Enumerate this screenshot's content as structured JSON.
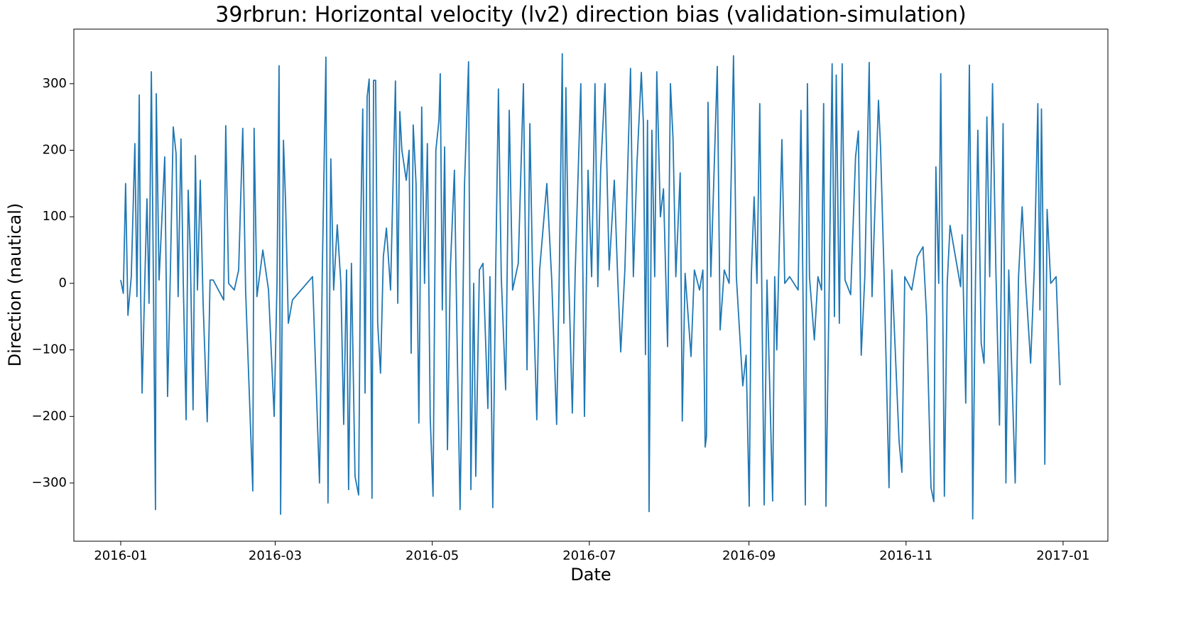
{
  "chart_data": {
    "type": "line",
    "title": "39rbrun: Horizontal velocity (lv2) direction bias (validation-simulation)",
    "x_label": "Date",
    "y_label": "Direction (nautical)",
    "color": "#1f77b4",
    "xlim": [
      -18.2,
      383.4
    ],
    "xticks": [
      {
        "value": 0,
        "label": "2016-01"
      },
      {
        "value": 60,
        "label": "2016-03"
      },
      {
        "value": 121,
        "label": "2016-05"
      },
      {
        "value": 182,
        "label": "2016-07"
      },
      {
        "value": 244,
        "label": "2016-09"
      },
      {
        "value": 305,
        "label": "2016-11"
      },
      {
        "value": 366,
        "label": "2017-01"
      }
    ],
    "ylim": [
      -387.5,
      382
    ],
    "yticks": [
      {
        "value": -300,
        "label": "−300"
      },
      {
        "value": -200,
        "label": "−200"
      },
      {
        "value": -100,
        "label": "−100"
      },
      0,
      100,
      200,
      300
    ],
    "x": [
      0.0,
      1.0,
      1.9,
      2.8,
      4.1,
      5.5,
      6.3,
      7.2,
      7.7,
      8.3,
      9.4,
      10.2,
      11.0,
      11.9,
      12.7,
      13.5,
      13.8,
      14.9,
      17.1,
      18.2,
      19.3,
      20.4,
      21.5,
      22.3,
      23.4,
      24.3,
      25.4,
      26.2,
      27.0,
      28.1,
      29.0,
      29.8,
      30.9,
      32.0,
      33.6,
      34.7,
      35.9,
      40.0,
      40.8,
      41.9,
      44.1,
      45.8,
      47.4,
      48.5,
      51.3,
      51.8,
      52.9,
      55.2,
      57.4,
      59.6,
      60.7,
      61.5,
      62.1,
      63.2,
      64.0,
      65.1,
      66.7,
      74.5,
      75.8,
      77.2,
      78.3,
      79.7,
      80.5,
      81.6,
      82.7,
      84.1,
      85.5,
      86.6,
      87.7,
      88.5,
      89.6,
      91.0,
      92.4,
      93.2,
      94.0,
      94.9,
      95.7,
      96.5,
      97.6,
      98.2,
      99.0,
      99.8,
      100.9,
      102.0,
      103.2,
      104.8,
      106.7,
      107.6,
      108.4,
      109.2,
      110.9,
      112.0,
      112.8,
      113.6,
      114.7,
      115.8,
      116.9,
      118.0,
      119.1,
      120.2,
      121.3,
      122.4,
      123.6,
      124.1,
      124.9,
      125.8,
      126.9,
      128.0,
      129.6,
      130.7,
      131.8,
      132.4,
      133.5,
      135.1,
      136.0,
      137.1,
      137.9,
      139.3,
      140.7,
      142.6,
      143.4,
      144.5,
      145.6,
      146.7,
      147.8,
      149.5,
      150.9,
      152.2,
      154.4,
      156.4,
      157.8,
      158.9,
      160.0,
      161.6,
      162.7,
      165.5,
      167.4,
      169.3,
      170.4,
      171.5,
      172.1,
      172.9,
      174.0,
      175.4,
      176.5,
      178.7,
      180.1,
      181.5,
      182.9,
      184.2,
      185.3,
      186.4,
      188.1,
      189.7,
      191.7,
      193.0,
      194.2,
      195.8,
      198.0,
      199.1,
      200.5,
      202.2,
      203.0,
      203.8,
      204.6,
      205.2,
      206.3,
      207.4,
      208.2,
      209.6,
      210.8,
      212.4,
      213.5,
      214.5,
      215.6,
      217.3,
      218.1,
      219.2,
      221.5,
      222.8,
      224.8,
      226.1,
      227.0,
      227.5,
      228.1,
      229.2,
      231.7,
      232.8,
      234.4,
      236.3,
      238.0,
      239.1,
      241.6,
      242.9,
      244.1,
      244.9,
      246.0,
      247.1,
      248.2,
      249.9,
      251.0,
      253.2,
      254.0,
      254.8,
      256.8,
      257.9,
      259.8,
      263.1,
      264.2,
      265.9,
      266.7,
      267.5,
      269.4,
      270.8,
      272.2,
      273.0,
      273.9,
      275.2,
      276.3,
      277.2,
      277.9,
      279.1,
      280.2,
      281.3,
      283.5,
      285.4,
      286.5,
      287.6,
      289.0,
      290.7,
      291.8,
      294.3,
      295.1,
      296.5,
      298.4,
      299.5,
      302.3,
      303.4,
      304.5,
      307.2,
      309.4,
      311.6,
      313.0,
      314.7,
      315.8,
      316.6,
      317.7,
      318.5,
      319.9,
      321.0,
      322.1,
      326.2,
      326.8,
      328.2,
      329.6,
      330.4,
      330.9,
      332.0,
      332.9,
      334.2,
      335.3,
      336.4,
      337.5,
      338.6,
      339.9,
      341.3,
      342.7,
      343.8,
      344.9,
      347.4,
      348.7,
      350.1,
      351.5,
      353.4,
      354.8,
      356.2,
      357.0,
      357.6,
      358.4,
      358.9,
      359.8,
      361.2,
      363.3,
      364.8
    ],
    "values": [
      5,
      -15,
      150,
      -48,
      10,
      210,
      -20,
      283,
      0,
      -165,
      10,
      127,
      -30,
      318,
      0,
      -340,
      285,
      5,
      190,
      -170,
      20,
      235,
      195,
      -20,
      217,
      0,
      -205,
      140,
      48,
      -190,
      192,
      -10,
      155,
      -30,
      -208,
      5,
      5,
      -25,
      237,
      0,
      -10,
      20,
      233,
      -10,
      -312,
      233,
      -20,
      50,
      -10,
      -200,
      0,
      327,
      -347,
      215,
      125,
      -60,
      -25,
      10,
      -140,
      -300,
      20,
      340,
      -330,
      187,
      -10,
      88,
      0,
      -212,
      20,
      -310,
      30,
      -290,
      -318,
      80,
      262,
      -165,
      280,
      307,
      -323,
      305,
      305,
      -60,
      -135,
      40,
      83,
      -10,
      304,
      -30,
      258,
      200,
      155,
      200,
      -105,
      238,
      150,
      -210,
      265,
      0,
      210,
      -200,
      -320,
      200,
      245,
      315,
      -40,
      205,
      -250,
      20,
      170,
      -100,
      -340,
      -190,
      145,
      333,
      -310,
      0,
      -290,
      20,
      30,
      -188,
      10,
      -337,
      10,
      292,
      10,
      -160,
      260,
      -10,
      30,
      300,
      -130,
      240,
      10,
      -205,
      20,
      150,
      5,
      -212,
      30,
      345,
      -60,
      294,
      10,
      -195,
      15,
      300,
      -200,
      170,
      10,
      300,
      -5,
      170,
      300,
      20,
      155,
      10,
      -103,
      20,
      323,
      10,
      180,
      317,
      240,
      -107,
      245,
      -343,
      230,
      10,
      318,
      100,
      142,
      -95,
      300,
      218,
      10,
      166,
      -207,
      15,
      -110,
      20,
      -10,
      20,
      -246,
      -230,
      272,
      10,
      326,
      -70,
      20,
      0,
      342,
      10,
      -154,
      -108,
      -335,
      10,
      130,
      0,
      270,
      -333,
      5,
      -327,
      10,
      -100,
      216,
      0,
      10,
      -10,
      260,
      -333,
      300,
      10,
      -85,
      10,
      -10,
      270,
      -335,
      5,
      330,
      -50,
      313,
      -60,
      330,
      5,
      -17,
      190,
      229,
      -108,
      10,
      332,
      -20,
      275,
      205,
      10,
      -307,
      20,
      -237,
      -284,
      10,
      -10,
      40,
      55,
      -50,
      -307,
      -328,
      175,
      0,
      315,
      -320,
      0,
      87,
      -5,
      73,
      -180,
      328,
      20,
      -354,
      10,
      230,
      -90,
      -120,
      250,
      10,
      300,
      20,
      -213,
      240,
      -300,
      20,
      -300,
      10,
      115,
      0,
      -120,
      20,
      270,
      -40,
      262,
      10,
      -272,
      111,
      0,
      10,
      -153
    ]
  }
}
